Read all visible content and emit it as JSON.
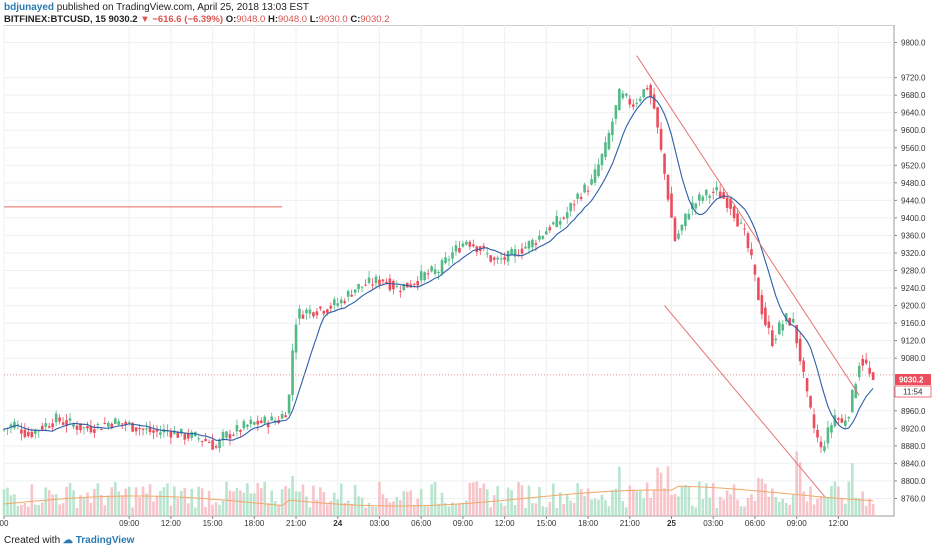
{
  "header": {
    "publisher": "bdjunayed",
    "published_text": "published on TradingView.com, April 25, 2018 13:03 EST",
    "symbol": "BITFINEX:BTCUSD, 15",
    "last": "9030.2",
    "change": "−616.6 (−6.39%)",
    "open_label": "O:",
    "open": "9048.0",
    "high_label": "H:",
    "high": "9048.0",
    "low_label": "L:",
    "low": "9030.0",
    "close_label": "C:",
    "close": "9030.2"
  },
  "footer": {
    "created_with": "Created with",
    "brand": "TradingView"
  },
  "badges": {
    "price": "9030.2",
    "timer": "11:54"
  },
  "colors": {
    "up": "#53b987",
    "down": "#eb4d5c",
    "ma": "#2e5ea8",
    "line": "#e57373",
    "vol_ma": "#f0a868"
  },
  "chart_data": {
    "type": "candlestick",
    "symbol": "BITFINEX:BTCUSD",
    "interval": "15",
    "ylim": [
      8720,
      9840
    ],
    "y_ticks": [
      9800,
      9720,
      9680,
      9640,
      9600,
      9560,
      9520,
      9480,
      9440,
      9400,
      9360,
      9320,
      9280,
      9240,
      9200,
      9160,
      9120,
      9080,
      8960,
      8920,
      8880,
      8840,
      8800,
      8760
    ],
    "x_ticks": [
      {
        "label": "00",
        "h": 0
      },
      {
        "label": "09:00",
        "h": 9
      },
      {
        "label": "12:00",
        "h": 12
      },
      {
        "label": "15:00",
        "h": 15
      },
      {
        "label": "18:00",
        "h": 18
      },
      {
        "label": "21:00",
        "h": 21
      },
      {
        "label": "24",
        "h": 24
      },
      {
        "label": "03:00",
        "h": 27
      },
      {
        "label": "06:00",
        "h": 30
      },
      {
        "label": "09:00",
        "h": 33
      },
      {
        "label": "12:00",
        "h": 36
      },
      {
        "label": "15:00",
        "h": 39
      },
      {
        "label": "18:00",
        "h": 42
      },
      {
        "label": "21:00",
        "h": 45
      },
      {
        "label": "25",
        "h": 48
      },
      {
        "label": "03:00",
        "h": 51
      },
      {
        "label": "06:00",
        "h": 54
      },
      {
        "label": "09:00",
        "h": 57
      },
      {
        "label": "12:00",
        "h": 60
      }
    ],
    "price_path": [
      [
        0,
        8915
      ],
      [
        1,
        8930
      ],
      [
        2,
        8905
      ],
      [
        3,
        8925
      ],
      [
        4,
        8940
      ],
      [
        5,
        8930
      ],
      [
        6,
        8920
      ],
      [
        7,
        8925
      ],
      [
        8,
        8935
      ],
      [
        9,
        8930
      ],
      [
        10,
        8920
      ],
      [
        11,
        8910
      ],
      [
        12,
        8915
      ],
      [
        13,
        8905
      ],
      [
        14,
        8900
      ],
      [
        15,
        8890
      ],
      [
        15.5,
        8875
      ],
      [
        16,
        8900
      ],
      [
        17,
        8915
      ],
      [
        18,
        8930
      ],
      [
        19,
        8935
      ],
      [
        20,
        8940
      ],
      [
        20.5,
        8960
      ],
      [
        20.8,
        9000
      ],
      [
        21.0,
        9100
      ],
      [
        21.3,
        9180
      ],
      [
        21.8,
        9185
      ],
      [
        22.5,
        9190
      ],
      [
        23.5,
        9195
      ],
      [
        24.5,
        9210
      ],
      [
        25.5,
        9240
      ],
      [
        26.5,
        9250
      ],
      [
        27.5,
        9260
      ],
      [
        28.5,
        9240
      ],
      [
        29.5,
        9250
      ],
      [
        30.5,
        9270
      ],
      [
        31.5,
        9280
      ],
      [
        32.5,
        9320
      ],
      [
        33.5,
        9350
      ],
      [
        34.5,
        9330
      ],
      [
        35.5,
        9300
      ],
      [
        36.5,
        9310
      ],
      [
        37.5,
        9330
      ],
      [
        38.5,
        9350
      ],
      [
        39.5,
        9380
      ],
      [
        40.5,
        9400
      ],
      [
        41.5,
        9450
      ],
      [
        42.5,
        9480
      ],
      [
        43.5,
        9560
      ],
      [
        44.5,
        9680
      ],
      [
        45.5,
        9660
      ],
      [
        46.5,
        9700
      ],
      [
        47.0,
        9650
      ],
      [
        47.5,
        9550
      ],
      [
        48.0,
        9450
      ],
      [
        48.5,
        9350
      ],
      [
        49.0,
        9380
      ],
      [
        49.5,
        9420
      ],
      [
        50.5,
        9450
      ],
      [
        51.5,
        9460
      ],
      [
        52.5,
        9430
      ],
      [
        53.5,
        9360
      ],
      [
        54.0,
        9300
      ],
      [
        54.5,
        9220
      ],
      [
        55.0,
        9160
      ],
      [
        55.5,
        9120
      ],
      [
        56.0,
        9150
      ],
      [
        56.5,
        9170
      ],
      [
        57.0,
        9160
      ],
      [
        57.5,
        9080
      ],
      [
        58.0,
        8990
      ],
      [
        58.5,
        8920
      ],
      [
        59.0,
        8870
      ],
      [
        59.5,
        8910
      ],
      [
        60.0,
        8950
      ],
      [
        60.5,
        8930
      ],
      [
        61.0,
        8960
      ],
      [
        61.3,
        9000
      ],
      [
        61.8,
        9080
      ],
      [
        62.3,
        9060
      ],
      [
        62.6,
        9030
      ]
    ],
    "moving_average": "single series, period not shown",
    "last_price": 9030.2,
    "annotations": [
      {
        "type": "horizontal_segment",
        "price": 9425,
        "from_h": 0,
        "to_h": 20
      },
      {
        "type": "trend_line",
        "points": [
          [
            45.5,
            9770
          ],
          [
            61.5,
            8995
          ]
        ]
      },
      {
        "type": "trend_line",
        "points": [
          [
            47.5,
            9200
          ],
          [
            59,
            8765
          ]
        ]
      },
      {
        "type": "horizontal_dotted",
        "price": 9042
      }
    ],
    "grid": true,
    "volume_pane": true
  }
}
